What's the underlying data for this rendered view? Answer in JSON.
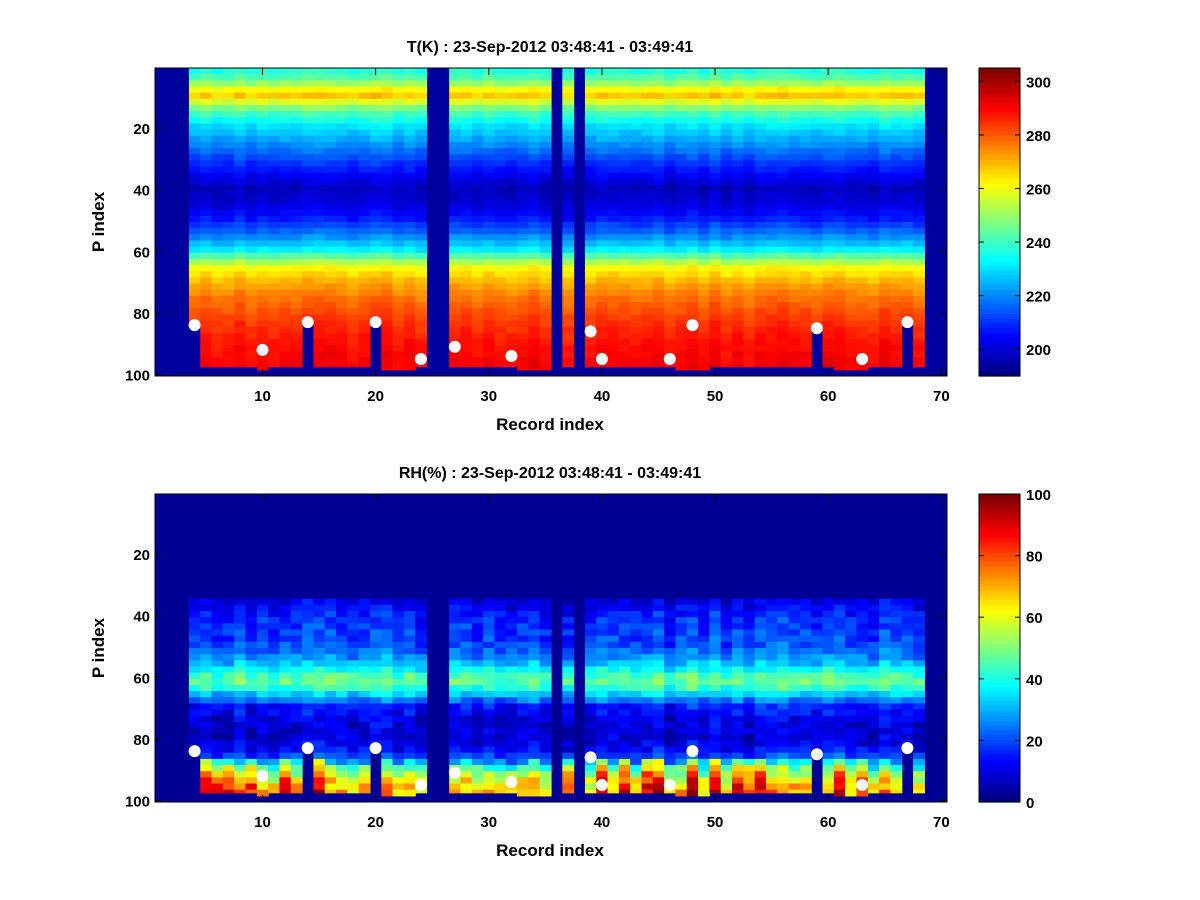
{
  "chart_data": [
    {
      "type": "heatmap",
      "title": "T(K) : 23-Sep-2012 03:48:41 - 03:49:41",
      "xlabel": "Record index",
      "ylabel": "P index",
      "xlim": [
        0.5,
        70.5
      ],
      "ylim": [
        0.5,
        100.5
      ],
      "y_reversed": true,
      "x_ticks": [
        10,
        20,
        30,
        40,
        50,
        60,
        70
      ],
      "y_ticks": [
        20,
        40,
        60,
        80,
        100
      ],
      "colormap": "jet",
      "colorbar": {
        "range": [
          190,
          305
        ],
        "ticks": [
          200,
          220,
          240,
          260,
          280,
          300
        ]
      },
      "profile_levels": [
        1,
        5,
        8,
        10,
        12,
        15,
        20,
        25,
        30,
        35,
        40,
        45,
        50,
        55,
        60,
        63,
        66,
        70,
        75,
        80,
        85,
        90,
        95,
        100
      ],
      "profile_values": [
        235,
        245,
        262,
        268,
        258,
        243,
        230,
        222,
        213,
        205,
        197,
        200,
        207,
        218,
        232,
        248,
        262,
        270,
        277,
        282,
        286,
        289,
        291,
        292
      ],
      "fill_value": 193,
      "missing_records": [
        1,
        2,
        3,
        25,
        26,
        36,
        38,
        69,
        70
      ],
      "surface_level": [
        97,
        97,
        97,
        97,
        97,
        97,
        97,
        97,
        97,
        98,
        97,
        97,
        97,
        97,
        97,
        97,
        97,
        97,
        97,
        97,
        98,
        98,
        98,
        97,
        97,
        97,
        97,
        97,
        97,
        97,
        97,
        97,
        98,
        98,
        98,
        97,
        97,
        97,
        97,
        97,
        97,
        97,
        97,
        97,
        97,
        97,
        98,
        98,
        98,
        97,
        97,
        97,
        97,
        97,
        97,
        97,
        97,
        97,
        97,
        97,
        98,
        98,
        98,
        97,
        97,
        97,
        97,
        97,
        97,
        97
      ],
      "markers": [
        {
          "x": 4,
          "y": 84
        },
        {
          "x": 10,
          "y": 92
        },
        {
          "x": 14,
          "y": 83
        },
        {
          "x": 20,
          "y": 83
        },
        {
          "x": 24,
          "y": 95
        },
        {
          "x": 27,
          "y": 91
        },
        {
          "x": 32,
          "y": 94
        },
        {
          "x": 39,
          "y": 86
        },
        {
          "x": 40,
          "y": 95
        },
        {
          "x": 46,
          "y": 95
        },
        {
          "x": 48,
          "y": 84
        },
        {
          "x": 59,
          "y": 85
        },
        {
          "x": 63,
          "y": 95
        },
        {
          "x": 67,
          "y": 83
        }
      ]
    },
    {
      "type": "heatmap",
      "title": "RH(%) : 23-Sep-2012 03:48:41 - 03:49:41",
      "xlabel": "Record index",
      "ylabel": "P index",
      "xlim": [
        0.5,
        70.5
      ],
      "ylim": [
        0.5,
        100.5
      ],
      "y_reversed": true,
      "x_ticks": [
        10,
        20,
        30,
        40,
        50,
        60,
        70
      ],
      "y_ticks": [
        20,
        40,
        60,
        80,
        100
      ],
      "colormap": "jet",
      "colorbar": {
        "range": [
          0,
          100
        ],
        "ticks": [
          0,
          20,
          40,
          60,
          80,
          100
        ]
      },
      "profile_levels": [
        1,
        30,
        36,
        40,
        45,
        50,
        55,
        58,
        60,
        62,
        64,
        67,
        70,
        75,
        80,
        85,
        88,
        90,
        92,
        95,
        97
      ],
      "profile_values": [
        2,
        3,
        10,
        15,
        18,
        20,
        28,
        38,
        45,
        48,
        42,
        28,
        15,
        9,
        9,
        14,
        30,
        45,
        55,
        65,
        70
      ],
      "fill_value": 2,
      "missing_records": [
        1,
        2,
        3,
        25,
        26,
        36,
        38,
        69,
        70
      ],
      "surface_level": [
        97,
        97,
        97,
        97,
        97,
        97,
        97,
        97,
        97,
        98,
        97,
        97,
        97,
        97,
        97,
        97,
        97,
        97,
        97,
        97,
        98,
        98,
        98,
        97,
        97,
        97,
        97,
        97,
        97,
        97,
        97,
        97,
        98,
        98,
        98,
        97,
        97,
        97,
        97,
        97,
        97,
        97,
        97,
        97,
        97,
        97,
        98,
        98,
        98,
        97,
        97,
        97,
        97,
        97,
        97,
        97,
        97,
        97,
        97,
        97,
        98,
        98,
        98,
        97,
        97,
        97,
        97,
        97,
        97,
        97
      ],
      "markers": [
        {
          "x": 4,
          "y": 84
        },
        {
          "x": 10,
          "y": 92
        },
        {
          "x": 14,
          "y": 83
        },
        {
          "x": 20,
          "y": 83
        },
        {
          "x": 24,
          "y": 95
        },
        {
          "x": 27,
          "y": 91
        },
        {
          "x": 32,
          "y": 94
        },
        {
          "x": 39,
          "y": 86
        },
        {
          "x": 40,
          "y": 95
        },
        {
          "x": 46,
          "y": 95
        },
        {
          "x": 48,
          "y": 84
        },
        {
          "x": 59,
          "y": 85
        },
        {
          "x": 63,
          "y": 95
        },
        {
          "x": 67,
          "y": 83
        }
      ]
    }
  ]
}
